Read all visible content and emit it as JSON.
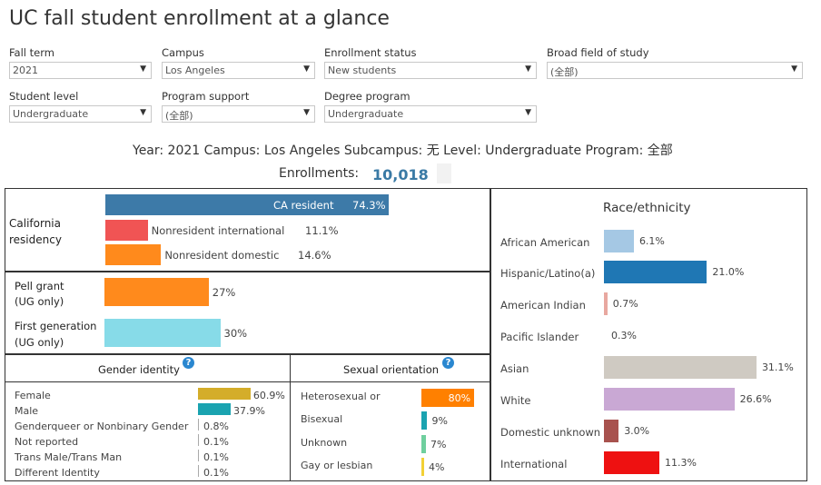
{
  "title": "UC fall student enrollment at a glance",
  "filters": {
    "fall_term": {
      "label": "Fall term",
      "value": "2021"
    },
    "campus": {
      "label": "Campus",
      "value": "Los Angeles"
    },
    "enrollment_status": {
      "label": "Enrollment status",
      "value": "New students"
    },
    "broad_field": {
      "label": "Broad field of study",
      "value": "(全部)"
    },
    "student_level": {
      "label": "Student level",
      "value": "Undergraduate"
    },
    "program_support": {
      "label": "Program support",
      "value": "(全部)"
    },
    "degree_program": {
      "label": "Degree program",
      "value": "Undergraduate"
    }
  },
  "summary": {
    "line": "Year: 2021  Campus: Los Angeles  Subcampus: 无  Level: Undergraduate  Program: 全部",
    "enrollments_label": "Enrollments:",
    "enrollments_value": "10,018"
  },
  "residency": {
    "label": "California residency",
    "items": [
      {
        "name": "CA resident",
        "pct": 74.3,
        "pct_text": "74.3%",
        "color": "#3d7aa8"
      },
      {
        "name": "Nonresident international",
        "pct": 11.1,
        "pct_text": "11.1%",
        "color": "#f05454"
      },
      {
        "name": "Nonresident domestic",
        "pct": 14.6,
        "pct_text": "14.6%",
        "color": "#ff8a1c"
      }
    ]
  },
  "pell": {
    "label_line1": "Pell grant",
    "label_line2": "(UG only)",
    "pct": 27,
    "pct_text": "27%",
    "color": "#ff8a1c"
  },
  "firstgen": {
    "label_line1": "First generation",
    "label_line2": "(UG only)",
    "pct": 30,
    "pct_text": "30%",
    "color": "#87dbe8"
  },
  "gender": {
    "header": "Gender identity",
    "help": "?",
    "items": [
      {
        "name": "Female",
        "pct": 60.9,
        "pct_text": "60.9%",
        "color": "#d4ad2a"
      },
      {
        "name": "Male",
        "pct": 37.9,
        "pct_text": "37.9%",
        "color": "#1aa3b0"
      },
      {
        "name": "Genderqueer or Nonbinary Gender",
        "pct": 0.8,
        "pct_text": "0.8%",
        "color": "#8fb83a"
      },
      {
        "name": "Not reported",
        "pct": 0.1,
        "pct_text": "0.1%",
        "color": "#999999"
      },
      {
        "name": "Trans Male/Trans Man",
        "pct": 0.1,
        "pct_text": "0.1%",
        "color": "#999999"
      },
      {
        "name": "Different Identity",
        "pct": 0.1,
        "pct_text": "0.1%",
        "color": "#999999"
      }
    ]
  },
  "orientation": {
    "header": "Sexual orientation",
    "help": "?",
    "items": [
      {
        "name": "Heterosexual or",
        "pct": 80,
        "pct_text": "80%",
        "color": "#ff8000"
      },
      {
        "name": "Bisexual",
        "pct": 9,
        "pct_text": "9%",
        "color": "#1aa3b0"
      },
      {
        "name": "Unknown",
        "pct": 7,
        "pct_text": "7%",
        "color": "#6fcf9e"
      },
      {
        "name": "Gay or lesbian",
        "pct": 4,
        "pct_text": "4%",
        "color": "#f2d035"
      }
    ]
  },
  "race": {
    "header": "Race/ethnicity",
    "items": [
      {
        "name": "African American",
        "pct": 6.1,
        "pct_text": "6.1%",
        "color": "#a5c8e4"
      },
      {
        "name": "Hispanic/Latino(a)",
        "pct": 21.0,
        "pct_text": "21.0%",
        "color": "#1f77b4"
      },
      {
        "name": "American Indian",
        "pct": 0.7,
        "pct_text": "0.7%",
        "color": "#e8a8a0"
      },
      {
        "name": "Pacific Islander",
        "pct": 0.3,
        "pct_text": "0.3%",
        "color": "#cccccc"
      },
      {
        "name": "Asian",
        "pct": 31.1,
        "pct_text": "31.1%",
        "color": "#cfcac2"
      },
      {
        "name": "White",
        "pct": 26.6,
        "pct_text": "26.6%",
        "color": "#c9a8d4"
      },
      {
        "name": "Domestic unknown",
        "pct": 3.0,
        "pct_text": "3.0%",
        "color": "#a8524e"
      },
      {
        "name": "International",
        "pct": 11.3,
        "pct_text": "11.3%",
        "color": "#ee1111"
      }
    ]
  }
}
